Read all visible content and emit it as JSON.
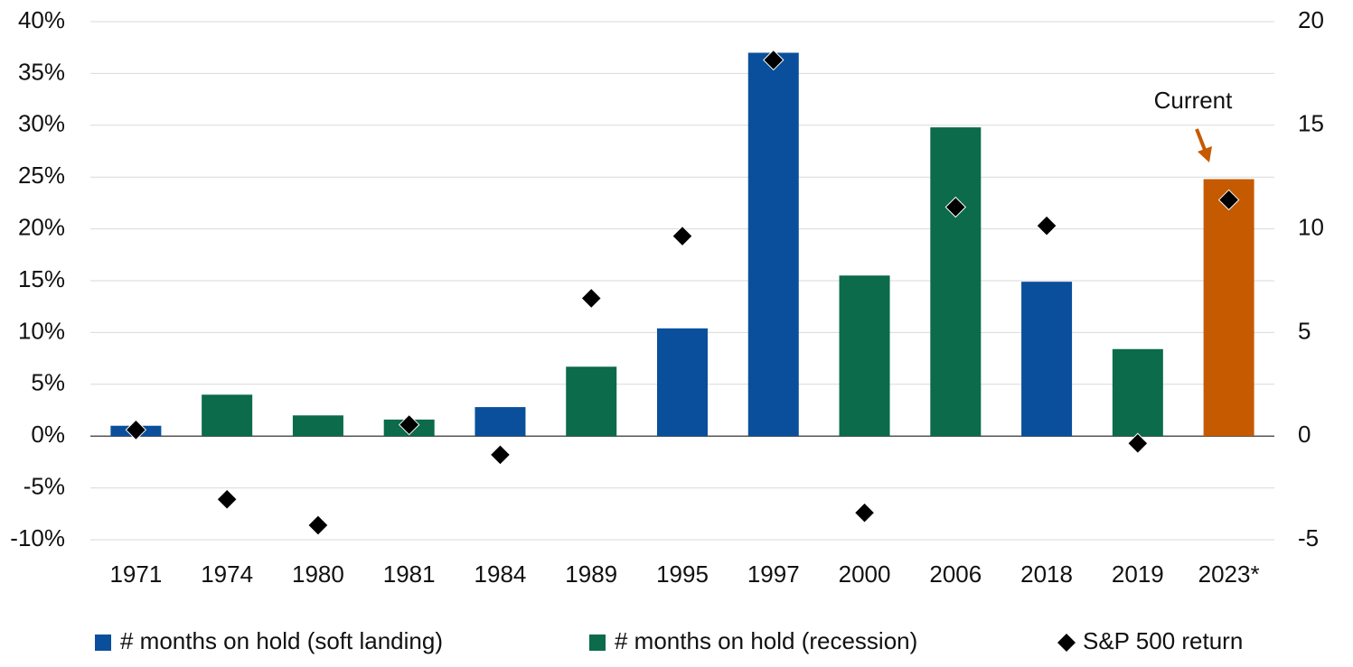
{
  "chart_data": {
    "type": "bar",
    "categories": [
      "1971",
      "1974",
      "1980",
      "1981",
      "1984",
      "1989",
      "1995",
      "1997",
      "2000",
      "2006",
      "2018",
      "2019",
      "2023*"
    ],
    "series": [
      {
        "name": "# months on hold (soft landing)",
        "type": "bar",
        "axis": "y2",
        "color": "#0a4f9b",
        "values": [
          0.5,
          null,
          null,
          null,
          1.4,
          null,
          5.2,
          18.5,
          null,
          null,
          7.45,
          null,
          null
        ]
      },
      {
        "name": "# months on hold (recession)",
        "type": "bar",
        "axis": "y2",
        "color": "#0b6b4b",
        "values": [
          null,
          2,
          1,
          0.8,
          null,
          3.35,
          null,
          null,
          7.75,
          14.9,
          null,
          4.2,
          null
        ]
      },
      {
        "type": "bar",
        "axis": "y2",
        "color": "#c55a00",
        "values": [
          null,
          null,
          null,
          null,
          null,
          null,
          null,
          null,
          null,
          null,
          null,
          null,
          12.4
        ]
      },
      {
        "name": "S&P 500 return",
        "type": "scatter",
        "color": "#000000",
        "values": [
          0.6,
          -6.1,
          -8.6,
          1.1,
          -1.8,
          13.3,
          19.3,
          36.3,
          -7.4,
          22.1,
          20.3,
          -0.7,
          22.8
        ]
      }
    ],
    "ylim": [
      -10,
      40
    ],
    "yticks": [
      {
        "value": -10,
        "label": "-10%"
      },
      {
        "value": -5,
        "label": "-5%"
      },
      {
        "value": 0,
        "label": "0%"
      },
      {
        "value": 5,
        "label": "5%"
      },
      {
        "value": 10,
        "label": "10%"
      },
      {
        "value": 15,
        "label": "15%"
      },
      {
        "value": 20,
        "label": "20%"
      },
      {
        "value": 25,
        "label": "25%"
      },
      {
        "value": 30,
        "label": "30%"
      },
      {
        "value": 35,
        "label": "35%"
      },
      {
        "value": 40,
        "label": "40%"
      }
    ],
    "y2lim": [
      -5,
      20
    ],
    "y2ticks": [
      -5,
      0,
      5,
      10,
      15,
      20
    ],
    "grid": true,
    "legend": "bottom",
    "annotations": [
      {
        "text": "Current",
        "color": "#c55a00"
      }
    ]
  }
}
